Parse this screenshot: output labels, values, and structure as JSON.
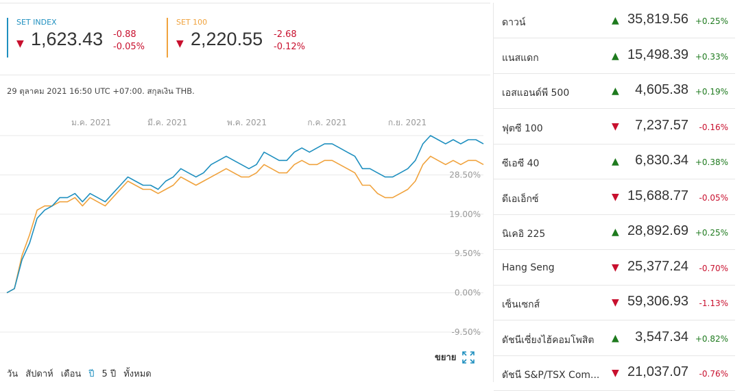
{
  "indices": [
    {
      "name": "SET INDEX",
      "direction": "down",
      "value": "1,623.43",
      "change": "-0.88",
      "change_pct": "-0.05%",
      "color": "#1e8fbf"
    },
    {
      "name": "SET 100",
      "direction": "down",
      "value": "2,220.55",
      "change": "-2.68",
      "change_pct": "-0.12%",
      "color": "#f0a23c"
    }
  ],
  "timestamp": "29 ตุลาคม 2021 16:50 UTC +07:00. สกุลเงิน THB.",
  "chart_data": {
    "type": "line",
    "x_labels": [
      "ม.ค. 2021",
      "มี.ค. 2021",
      "พ.ค. 2021",
      "ก.ค. 2021",
      "ก.ย. 2021"
    ],
    "y_labels": [
      "28.50%",
      "19.00%",
      "9.50%",
      "0.00%",
      "-9.50%"
    ],
    "y_ticks": [
      28.5,
      19.0,
      9.5,
      0.0,
      -9.5
    ],
    "ylim": [
      -9.5,
      38
    ],
    "series": [
      {
        "name": "SET INDEX",
        "color": "#1e8fbf",
        "values": [
          0,
          1,
          8,
          12,
          18,
          20,
          21,
          23,
          23,
          24,
          22,
          24,
          23,
          22,
          24,
          26,
          28,
          27,
          26,
          26,
          25,
          27,
          28,
          30,
          29,
          28,
          29,
          31,
          32,
          33,
          32,
          31,
          30,
          31,
          34,
          33,
          32,
          32,
          34,
          35,
          34,
          35,
          36,
          36,
          35,
          34,
          33,
          30,
          30,
          29,
          28,
          28,
          29,
          30,
          32,
          36,
          38,
          37,
          36,
          37,
          36,
          37,
          37,
          36
        ]
      },
      {
        "name": "SET 100",
        "color": "#f0a23c",
        "values": [
          0,
          1,
          9,
          14,
          20,
          21,
          21,
          22,
          22,
          23,
          21,
          23,
          22,
          21,
          23,
          25,
          27,
          26,
          25,
          25,
          24,
          25,
          26,
          28,
          27,
          26,
          27,
          28,
          29,
          30,
          29,
          28,
          28,
          29,
          31,
          30,
          29,
          29,
          31,
          32,
          31,
          31,
          32,
          32,
          31,
          30,
          29,
          26,
          26,
          24,
          23,
          23,
          24,
          25,
          27,
          31,
          33,
          32,
          31,
          32,
          31,
          32,
          32,
          31
        ]
      }
    ]
  },
  "expand_label": "ขยาย",
  "ranges": [
    "วัน",
    "สัปดาห์",
    "เดือน",
    "ปี",
    "5 ปี",
    "ทั้งหมด"
  ],
  "active_range": 3,
  "markets": [
    {
      "name": "ดาวน์",
      "direction": "up",
      "value": "35,819.56",
      "pct": "+0.25%"
    },
    {
      "name": "แนสแดก",
      "direction": "up",
      "value": "15,498.39",
      "pct": "+0.33%"
    },
    {
      "name": "เอสแอนด์พี 500",
      "direction": "up",
      "value": "4,605.38",
      "pct": "+0.19%"
    },
    {
      "name": "ฟุตซี 100",
      "direction": "down",
      "value": "7,237.57",
      "pct": "-0.16%"
    },
    {
      "name": "ซีเอซี 40",
      "direction": "up",
      "value": "6,830.34",
      "pct": "+0.38%"
    },
    {
      "name": "ดีเอเอ็กซ์",
      "direction": "down",
      "value": "15,688.77",
      "pct": "-0.05%"
    },
    {
      "name": "นิเคอิ 225",
      "direction": "up",
      "value": "28,892.69",
      "pct": "+0.25%"
    },
    {
      "name": "Hang Seng",
      "direction": "down",
      "value": "25,377.24",
      "pct": "-0.70%"
    },
    {
      "name": "เซ็นเซกส์",
      "direction": "down",
      "value": "59,306.93",
      "pct": "-1.13%"
    },
    {
      "name": "ดัชนีเซี่ยงไฮ้คอมโพสิต",
      "direction": "up",
      "value": "3,547.34",
      "pct": "+0.82%"
    },
    {
      "name": "ดัชนี S&P/TSX Com...",
      "direction": "down",
      "value": "21,037.07",
      "pct": "-0.76%"
    }
  ],
  "colors": {
    "up": "#1e7a1e",
    "down": "#c8102e",
    "accent": "#1e8fbf"
  }
}
